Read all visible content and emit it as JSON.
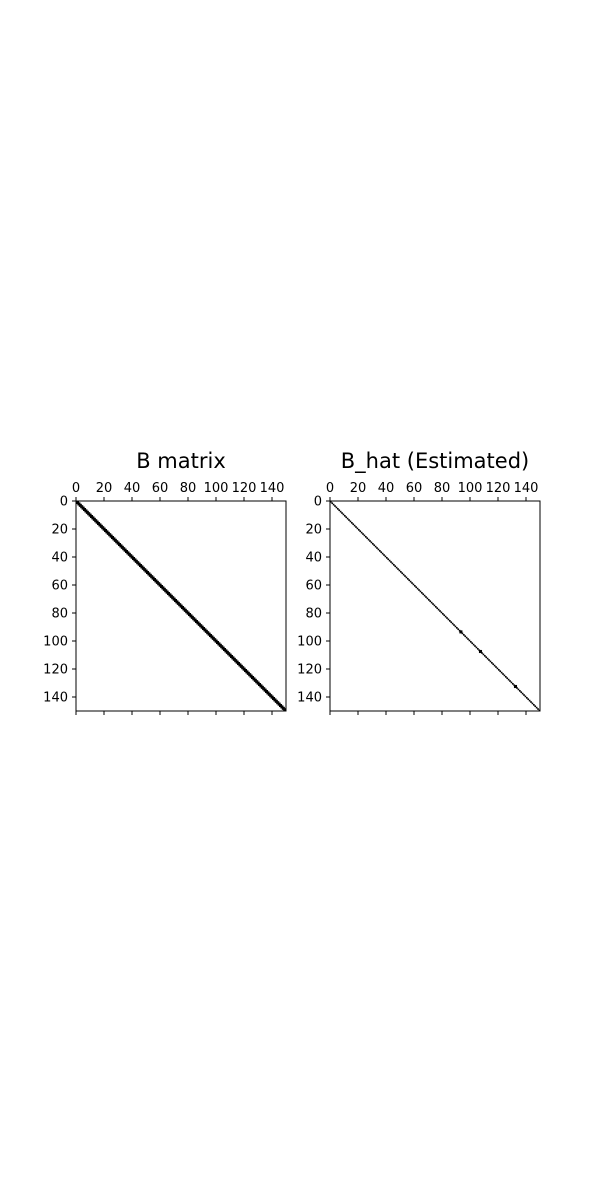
{
  "chart_data": [
    {
      "type": "heatmap",
      "title": "B matrix",
      "rows": 150,
      "cols": 150,
      "pattern": "diagonal",
      "diagonal_band_halfwidth": 1,
      "x_ticks": [
        0,
        20,
        40,
        60,
        80,
        100,
        120,
        140
      ],
      "y_ticks": [
        0,
        20,
        40,
        60,
        80,
        100,
        120,
        140
      ],
      "x_tick_labels": [
        "0",
        "20",
        "40",
        "60",
        "80",
        "100",
        "120",
        "140"
      ],
      "y_tick_labels": [
        "0",
        "20",
        "40",
        "60",
        "80",
        "100",
        "120",
        "140"
      ],
      "xlim": [
        0,
        150
      ],
      "ylim": [
        150,
        0
      ],
      "colormap": "binary",
      "nonzero_color": "#000000",
      "zero_color": "#ffffff",
      "x_tick_position": "top",
      "grid": false
    },
    {
      "type": "heatmap",
      "title": "B_hat (Estimated)",
      "rows": 150,
      "cols": 150,
      "pattern": "diagonal",
      "diagonal_band_halfwidth": 0,
      "highlighted_cells": [
        93,
        107,
        132
      ],
      "x_ticks": [
        0,
        20,
        40,
        60,
        80,
        100,
        120,
        140
      ],
      "y_ticks": [
        0,
        20,
        40,
        60,
        80,
        100,
        120,
        140
      ],
      "x_tick_labels": [
        "0",
        "20",
        "40",
        "60",
        "80",
        "100",
        "120",
        "140"
      ],
      "y_tick_labels": [
        "0",
        "20",
        "40",
        "60",
        "80",
        "100",
        "120",
        "140"
      ],
      "xlim": [
        0,
        150
      ],
      "ylim": [
        150,
        0
      ],
      "colormap": "binary",
      "nonzero_color": "#000000",
      "zero_color": "#ffffff",
      "x_tick_position": "top",
      "grid": false
    }
  ]
}
